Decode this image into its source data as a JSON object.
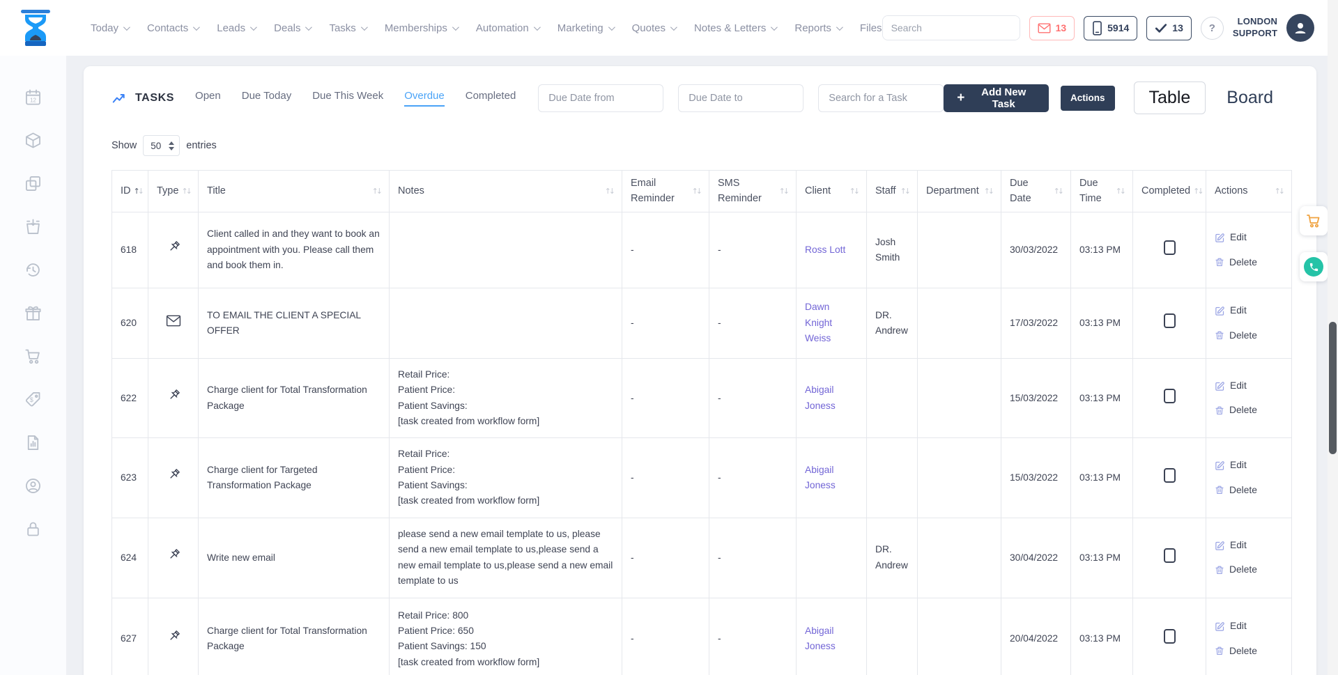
{
  "nav": {
    "items": [
      {
        "label": "Today"
      },
      {
        "label": "Contacts"
      },
      {
        "label": "Leads"
      },
      {
        "label": "Deals"
      },
      {
        "label": "Tasks"
      },
      {
        "label": "Memberships"
      },
      {
        "label": "Automation"
      },
      {
        "label": "Marketing"
      },
      {
        "label": "Quotes"
      },
      {
        "label": "Notes & Letters"
      },
      {
        "label": "Reports"
      },
      {
        "label": "Files"
      }
    ],
    "search_placeholder": "Search",
    "email_badge_count": "13",
    "phone_badge_count": "5914",
    "tasks_badge_count": "13",
    "help_label": "?",
    "account_line1": "LONDON",
    "account_line2": "SUPPORT"
  },
  "sidebar": {
    "icons": [
      "calendar-icon",
      "package-icon",
      "copy-icon",
      "bag-arrow-icon",
      "history-icon",
      "gift-icon",
      "cart-icon",
      "price-tag-icon",
      "report-icon",
      "account-icon",
      "lock-icon"
    ]
  },
  "tasks_header": {
    "title": "TASKS",
    "tabs": [
      {
        "label": "Open",
        "active": false
      },
      {
        "label": "Due Today",
        "active": false
      },
      {
        "label": "Due This Week",
        "active": false
      },
      {
        "label": "Overdue",
        "active": true
      },
      {
        "label": "Completed",
        "active": false
      }
    ],
    "due_date_from_placeholder": "Due Date from",
    "due_date_to_placeholder": "Due Date to",
    "task_search_placeholder": "Search for a Task",
    "add_button_label": "Add New Task",
    "add_button_plus": "+",
    "actions_button_label": "Actions",
    "table_toggle_label": "Table",
    "board_toggle_label": "Board"
  },
  "entries_bar": {
    "show_label": "Show",
    "page_size": "50",
    "entries_label": "entries"
  },
  "table": {
    "columns": [
      "ID",
      "Type",
      "Title",
      "Notes",
      "Email Reminder",
      "SMS Reminder",
      "Client",
      "Staff",
      "Department",
      "Due Date",
      "Due Time",
      "Completed",
      "Actions"
    ],
    "edit_label": "Edit",
    "delete_label": "Delete",
    "rows": [
      {
        "id": "618",
        "type_icon": "pin",
        "title": "Client called in and they want to book an appointment with you. Please call them and book them in.",
        "notes": "",
        "email_reminder": "-",
        "sms_reminder": "-",
        "client": "Ross Lott",
        "staff": "Josh Smith",
        "department": "",
        "due_date": "30/03/2022",
        "due_time": "03:13 PM",
        "completed": false
      },
      {
        "id": "620",
        "type_icon": "envelope",
        "title": "TO EMAIL THE CLIENT A SPECIAL OFFER",
        "notes": "",
        "email_reminder": "-",
        "sms_reminder": "-",
        "client": "Dawn Knight Weiss",
        "staff": "DR. Andrew",
        "department": "",
        "due_date": "17/03/2022",
        "due_time": "03:13 PM",
        "completed": false
      },
      {
        "id": "622",
        "type_icon": "pin",
        "title": "Charge client for Total Transformation Package",
        "notes": "Retail Price:\nPatient Price:\nPatient Savings:\n[task created from workflow form]",
        "email_reminder": "-",
        "sms_reminder": "-",
        "client": "Abigail Joness",
        "staff": "",
        "department": "",
        "due_date": "15/03/2022",
        "due_time": "03:13 PM",
        "completed": false
      },
      {
        "id": "623",
        "type_icon": "pin",
        "title": "Charge client for Targeted Transformation Package",
        "notes": "Retail Price:\nPatient Price:\nPatient Savings:\n[task created from workflow form]",
        "email_reminder": "-",
        "sms_reminder": "-",
        "client": "Abigail Joness",
        "staff": "",
        "department": "",
        "due_date": "15/03/2022",
        "due_time": "03:13 PM",
        "completed": false
      },
      {
        "id": "624",
        "type_icon": "pin",
        "title": "Write new email",
        "notes": "please send a new email template to us, please send a new email template to us,please send a new email template to us,please send a new email template to us",
        "email_reminder": "-",
        "sms_reminder": "-",
        "client": "",
        "staff": "DR. Andrew",
        "department": "",
        "due_date": "30/04/2022",
        "due_time": "03:13 PM",
        "completed": false
      },
      {
        "id": "627",
        "type_icon": "pin",
        "title": "Charge client for Total Transformation Package",
        "notes": "Retail Price: 800\nPatient Price: 650\nPatient Savings: 150\n[task created from workflow form]",
        "email_reminder": "-",
        "sms_reminder": "-",
        "client": "Abigail Joness",
        "staff": "",
        "department": "",
        "due_date": "20/04/2022",
        "due_time": "03:13 PM",
        "completed": false
      }
    ]
  },
  "colors": {
    "accent_blue": "#4aa3f7",
    "navy": "#2f3e57",
    "client_link": "#7265d6",
    "action_link": "#9aa4e4",
    "alert_red": "#ff7070",
    "floating_cart_orange": "#f0a23f",
    "floating_phone_teal": "#25c3a7"
  }
}
